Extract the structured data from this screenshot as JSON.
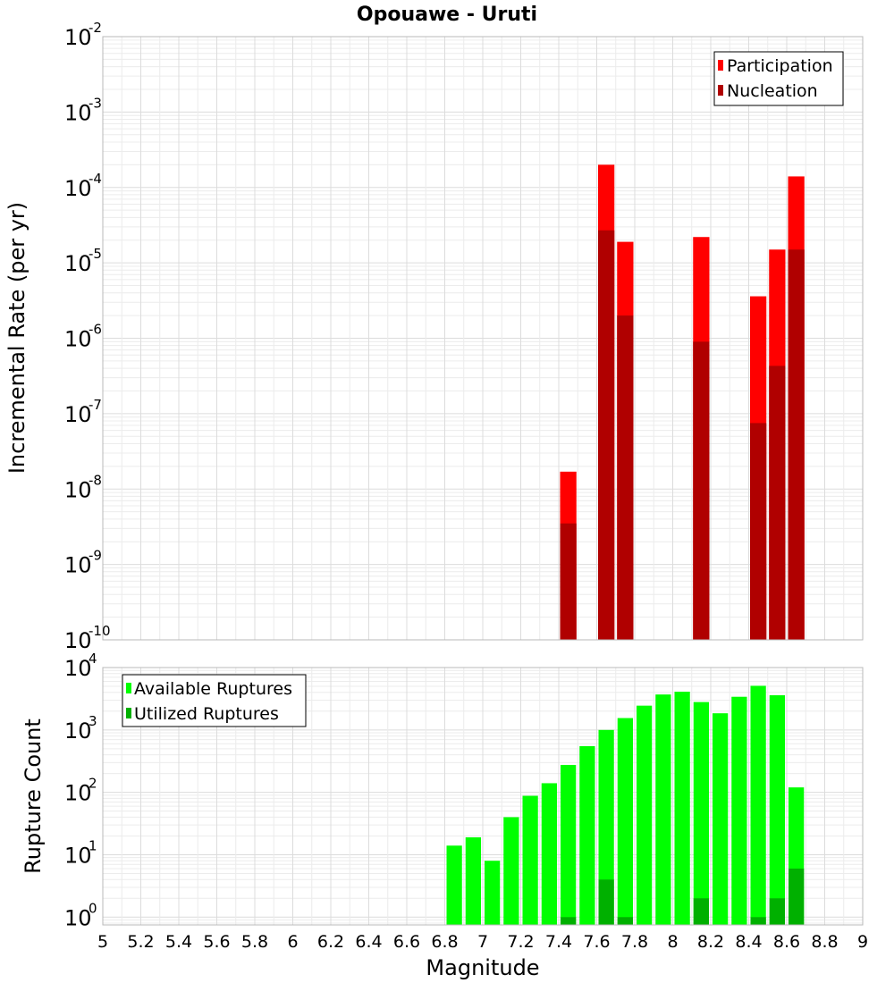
{
  "chart_data": [
    {
      "type": "bar",
      "title": "Opouawe - Uruti",
      "xlabel": "",
      "ylabel": "Incremental Rate (per yr)",
      "yscale": "log",
      "xlim": [
        5,
        9
      ],
      "ylim": [
        1e-10,
        0.01
      ],
      "grid": true,
      "legend_position": "top-right",
      "bar_width": 0.1,
      "y_ticks": [
        {
          "base": "10",
          "exp": "-2",
          "value": 0.01
        },
        {
          "base": "10",
          "exp": "-3",
          "value": 0.001
        },
        {
          "base": "10",
          "exp": "-4",
          "value": 0.0001
        },
        {
          "base": "10",
          "exp": "-5",
          "value": 1e-05
        },
        {
          "base": "10",
          "exp": "-6",
          "value": 1e-06
        },
        {
          "base": "10",
          "exp": "-7",
          "value": 1e-07
        },
        {
          "base": "10",
          "exp": "-8",
          "value": 1e-08
        },
        {
          "base": "10",
          "exp": "-9",
          "value": 1e-09
        },
        {
          "base": "10",
          "exp": "-10",
          "value": 1e-10
        }
      ],
      "series": [
        {
          "name": "Participation",
          "color": "#ff0000",
          "x": [
            7.45,
            7.65,
            7.75,
            8.15,
            8.45,
            8.55,
            8.65
          ],
          "values": [
            1.7e-08,
            0.0002,
            1.9e-05,
            2.2e-05,
            3.6e-06,
            1.5e-05,
            0.00014
          ]
        },
        {
          "name": "Nucleation",
          "color": "#b00000",
          "x": [
            7.45,
            7.65,
            7.75,
            8.15,
            8.45,
            8.55,
            8.65
          ],
          "values": [
            3.5e-09,
            2.7e-05,
            2e-06,
            9e-07,
            7.5e-08,
            4.3e-07,
            1.5e-05
          ]
        }
      ]
    },
    {
      "type": "bar",
      "title": "",
      "xlabel": "Magnitude",
      "ylabel": "Rupture Count",
      "yscale": "log",
      "xlim": [
        5,
        9
      ],
      "ylim": [
        0.75,
        10000.0
      ],
      "grid": true,
      "legend_position": "top-left",
      "bar_width": 0.1,
      "x_ticks": [
        "5",
        "5.2",
        "5.4",
        "5.6",
        "5.8",
        "6",
        "6.2",
        "6.4",
        "6.6",
        "6.8",
        "7",
        "7.2",
        "7.4",
        "7.6",
        "7.8",
        "8",
        "8.2",
        "8.4",
        "8.6",
        "8.8",
        "9"
      ],
      "y_ticks": [
        {
          "base": "10",
          "exp": "4",
          "value": 10000.0
        },
        {
          "base": "10",
          "exp": "3",
          "value": 1000.0
        },
        {
          "base": "10",
          "exp": "2",
          "value": 100.0
        },
        {
          "base": "10",
          "exp": "1",
          "value": 10.0
        },
        {
          "base": "10",
          "exp": "0",
          "value": 1
        }
      ],
      "series": [
        {
          "name": "Available Ruptures",
          "color": "#00ff00",
          "x": [
            6.85,
            6.95,
            7.05,
            7.15,
            7.25,
            7.35,
            7.45,
            7.55,
            7.65,
            7.75,
            7.85,
            7.95,
            8.05,
            8.15,
            8.25,
            8.35,
            8.45,
            8.55,
            8.65
          ],
          "values": [
            14,
            19,
            8,
            40,
            88,
            140,
            275,
            550,
            1000,
            1550,
            2450,
            3700,
            4100,
            2800,
            1850,
            3400,
            5100,
            3600,
            120
          ]
        },
        {
          "name": "Utilized Ruptures",
          "color": "#00b000",
          "x": [
            7.45,
            7.65,
            7.75,
            8.15,
            8.45,
            8.55,
            8.65
          ],
          "values": [
            1,
            4,
            1,
            2,
            1,
            2,
            6
          ]
        }
      ]
    }
  ]
}
